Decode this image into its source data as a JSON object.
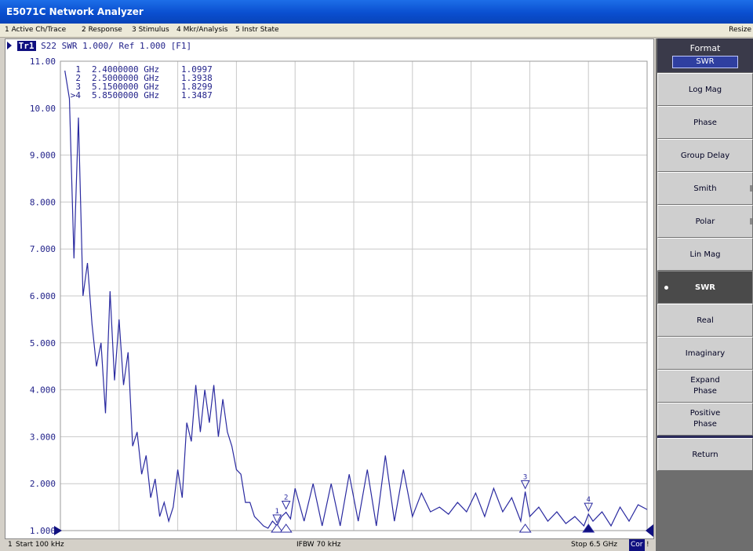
{
  "window": {
    "title": "E5071C Network Analyzer"
  },
  "menu": [
    {
      "label": "1 Active Ch/Trace"
    },
    {
      "label": "2 Response"
    },
    {
      "label": "3 Stimulus"
    },
    {
      "label": "4 Mkr/Analysis"
    },
    {
      "label": "5 Instr State"
    }
  ],
  "menu_right": "Resize",
  "trace": {
    "badge": "Tr1",
    "header": "S22 SWR 1.000/ Ref 1.000 [F1]"
  },
  "markers": [
    {
      "id": "1",
      "freq": "2.4000000 GHz",
      "value": "1.0997"
    },
    {
      "id": "2",
      "freq": "2.5000000 GHz",
      "value": "1.3938"
    },
    {
      "id": "3",
      "freq": "5.1500000 GHz",
      "value": "1.8299"
    },
    {
      "id": ">4",
      "freq": "5.8500000 GHz",
      "value": "1.3487"
    }
  ],
  "status": {
    "channel": "1",
    "start": "Start 100 kHz",
    "ifbw": "IFBW 70 kHz",
    "stop": "Stop 6.5 GHz",
    "cor": "Cor",
    "end": "!"
  },
  "softkeys": {
    "header": "Format",
    "current": "SWR",
    "items": [
      {
        "label": "Log Mag"
      },
      {
        "label": "Phase"
      },
      {
        "label": "Group Delay"
      },
      {
        "label": "Smith"
      },
      {
        "label": "Polar"
      },
      {
        "label": "Lin Mag"
      },
      {
        "label": "SWR",
        "active": true
      },
      {
        "label": "Real"
      },
      {
        "label": "Imaginary"
      },
      {
        "label_line1": "Expand",
        "label_line2": "Phase"
      },
      {
        "label_line1": "Positive",
        "label_line2": "Phase"
      },
      {
        "label": "Return"
      }
    ]
  },
  "colors": {
    "trace": "#2a2aa0",
    "marker_active_fill": "#101080",
    "grid": "#c8c8c8"
  },
  "chart_data": {
    "type": "line",
    "title": "S22 SWR 1.000/ Ref 1.000 [F1]",
    "xlabel": "",
    "ylabel": "",
    "xlim": [
      0.0001,
      6.5
    ],
    "x_unit": "GHz",
    "ylim": [
      1.0,
      11.0
    ],
    "ytick_labels": [
      "11.00",
      "10.00",
      "9.000",
      "8.000",
      "7.000",
      "6.000",
      "5.000",
      "4.000",
      "3.000",
      "2.000",
      "1.000"
    ],
    "grid": true,
    "series": [
      {
        "x": [
          0.05,
          0.1,
          0.15,
          0.2,
          0.25,
          0.3,
          0.35,
          0.4,
          0.45,
          0.5,
          0.55,
          0.6,
          0.65,
          0.7,
          0.75,
          0.8,
          0.85,
          0.9,
          0.95,
          1.0,
          1.05,
          1.1,
          1.15,
          1.2,
          1.25,
          1.3,
          1.35,
          1.4,
          1.45,
          1.5,
          1.55,
          1.6,
          1.65,
          1.7,
          1.75,
          1.8,
          1.85,
          1.9,
          1.95,
          2.0,
          2.05,
          2.1,
          2.15,
          2.2,
          2.25,
          2.3,
          2.35,
          2.4,
          2.45,
          2.5,
          2.55,
          2.6,
          2.7,
          2.8,
          2.9,
          3.0,
          3.1,
          3.2,
          3.3,
          3.4,
          3.5,
          3.6,
          3.7,
          3.8,
          3.9,
          4.0,
          4.1,
          4.2,
          4.3,
          4.4,
          4.5,
          4.6,
          4.7,
          4.8,
          4.9,
          5.0,
          5.1,
          5.15,
          5.2,
          5.3,
          5.4,
          5.5,
          5.6,
          5.7,
          5.8,
          5.85,
          5.9,
          6.0,
          6.1,
          6.2,
          6.3,
          6.4,
          6.5
        ],
        "y": [
          10.8,
          10.2,
          6.8,
          9.8,
          6.0,
          6.7,
          5.4,
          4.5,
          5.0,
          3.5,
          6.1,
          4.2,
          5.5,
          4.1,
          4.8,
          2.8,
          3.1,
          2.2,
          2.6,
          1.7,
          2.1,
          1.3,
          1.6,
          1.2,
          1.5,
          2.3,
          1.7,
          3.3,
          2.9,
          4.1,
          3.1,
          4.0,
          3.3,
          4.1,
          3.0,
          3.8,
          3.1,
          2.8,
          2.3,
          2.2,
          1.6,
          1.6,
          1.3,
          1.2,
          1.1,
          1.05,
          1.2,
          1.1,
          1.3,
          1.39,
          1.25,
          1.9,
          1.2,
          2.0,
          1.1,
          2.0,
          1.1,
          2.2,
          1.2,
          2.3,
          1.1,
          2.6,
          1.2,
          2.3,
          1.3,
          1.8,
          1.4,
          1.5,
          1.35,
          1.6,
          1.4,
          1.8,
          1.3,
          1.9,
          1.4,
          1.7,
          1.2,
          1.83,
          1.3,
          1.5,
          1.2,
          1.4,
          1.15,
          1.3,
          1.1,
          1.35,
          1.2,
          1.4,
          1.1,
          1.5,
          1.2,
          1.55,
          1.45
        ]
      }
    ]
  }
}
